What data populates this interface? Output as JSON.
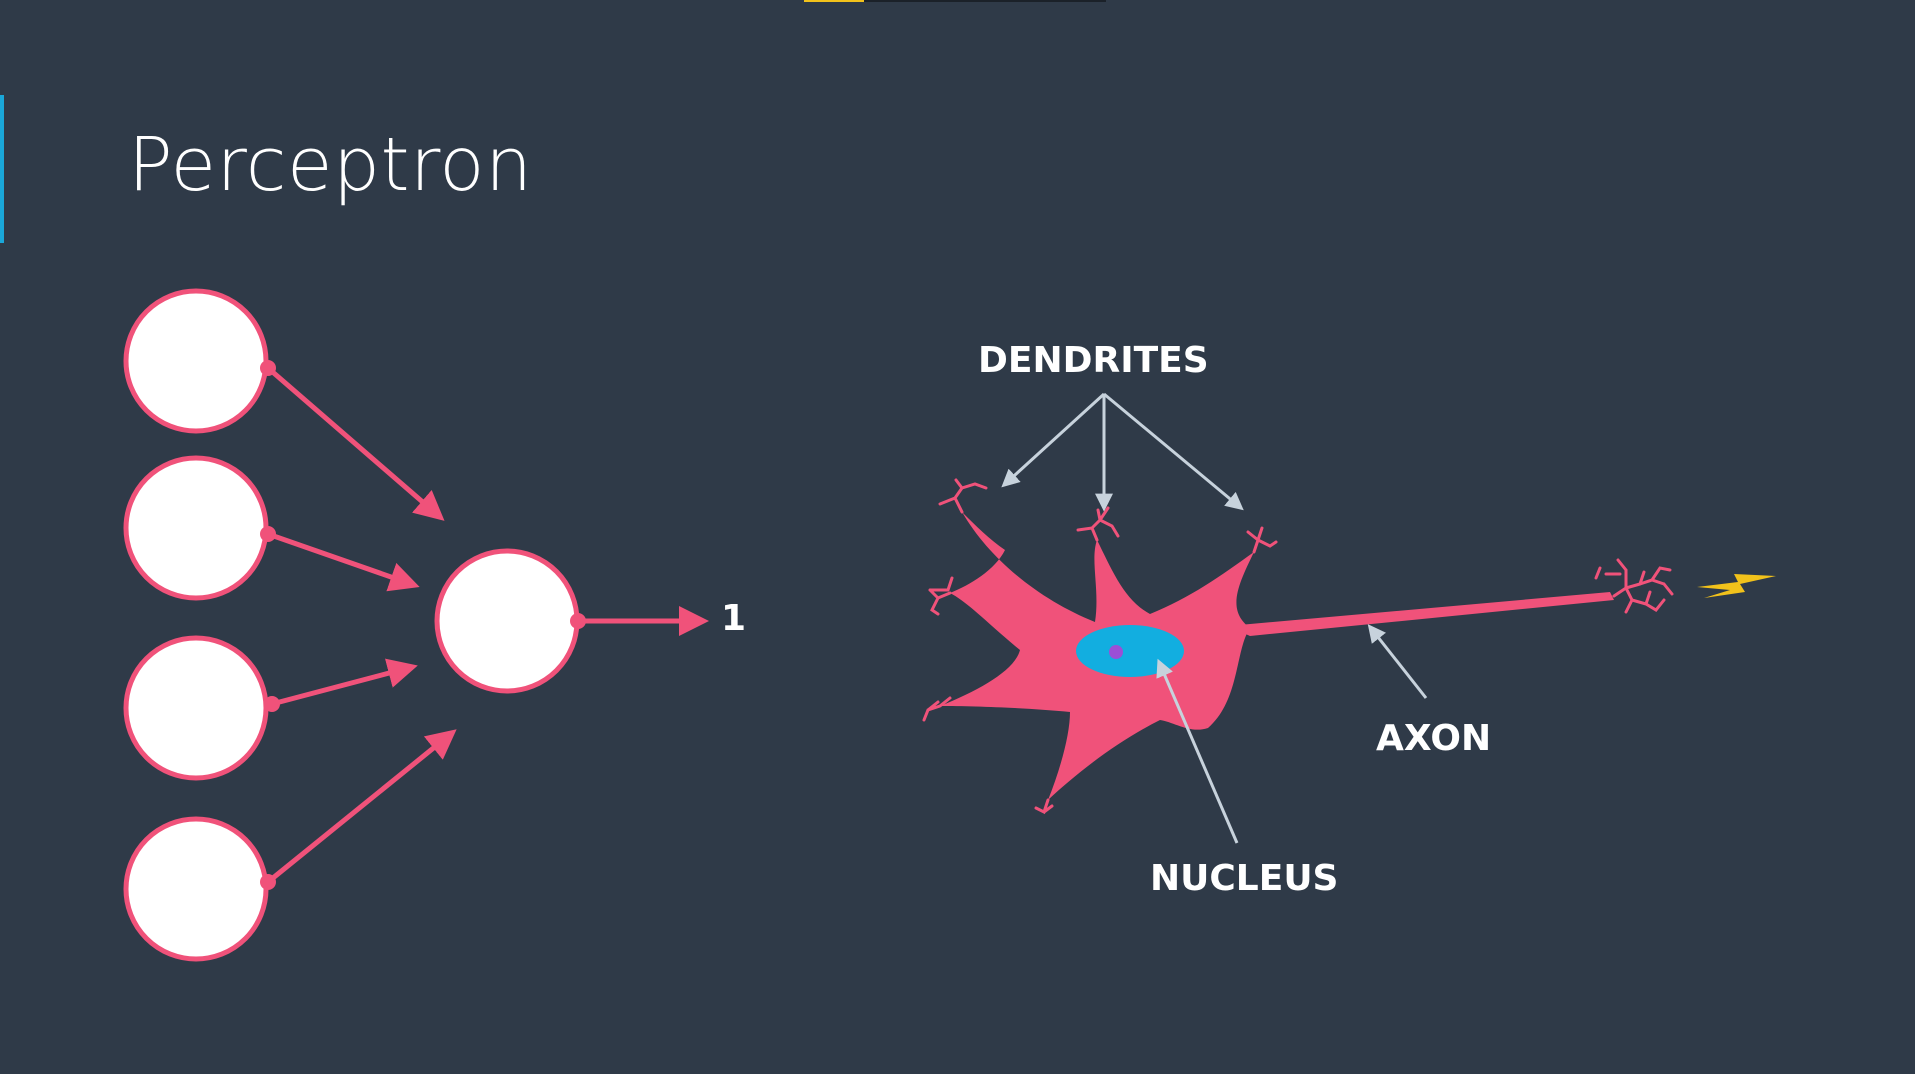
{
  "slide": {
    "title": "Perceptron",
    "progress": 0.2
  },
  "perceptron": {
    "output_label": "1",
    "input_count": 4
  },
  "neuron": {
    "labels": {
      "dendrites": "DENDRITES",
      "axon": "AXON",
      "nucleus": "NUCLEUS"
    },
    "signal_icon": "lightning-bolt-icon"
  },
  "colors": {
    "background": "#2f3a48",
    "pink": "#f0527a",
    "node_fill": "#ffffff",
    "nucleus": "#12aee0",
    "nucleolus": "#9b4fd6",
    "pointer": "#c7d2dc",
    "lightning": "#f2c21b",
    "accent": "#1aa7d9"
  }
}
